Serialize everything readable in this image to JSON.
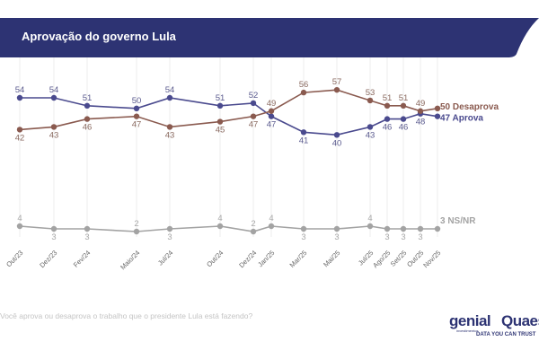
{
  "header": {
    "title": "Aprovação do governo Lula",
    "color": "#2d3373"
  },
  "footer": {
    "question": "Você aprova ou desaprova o trabalho que o presidente Lula está fazendo?",
    "logo_genial": "genial",
    "logo_genial_sub": "investimentos",
    "logo_quaest": "Quaest",
    "logo_quaest_sub": "DATA YOU CAN TRUST"
  },
  "chart_data": {
    "type": "line",
    "title": "Aprovação do governo Lula",
    "categories": [
      "Out/23",
      "Dez/23",
      "Fev/24",
      "Maio/24",
      "Jul/24",
      "Out/24",
      "Dez/24",
      "Jan/25",
      "Mar/25",
      "Mai/25",
      "Jul/25",
      "Ago/25",
      "Set/25",
      "Out/25",
      "Nov/25"
    ],
    "series": [
      {
        "name": "Aprova",
        "end_label": "47 Aprova",
        "color": "#4a4a8e",
        "values": [
          54,
          54,
          51,
          50,
          54,
          51,
          52,
          47,
          41,
          40,
          43,
          46,
          46,
          48,
          47
        ]
      },
      {
        "name": "Desaprova",
        "end_label": "50 Desaprova",
        "color": "#8a5a4f",
        "values": [
          42,
          43,
          46,
          47,
          43,
          45,
          47,
          49,
          56,
          57,
          53,
          51,
          51,
          49,
          50
        ]
      },
      {
        "name": "NS/NR",
        "end_label": "3 NS/NR",
        "color": "#a3a3a3",
        "values": [
          4,
          3,
          3,
          2,
          3,
          4,
          2,
          4,
          3,
          3,
          4,
          3,
          3,
          3,
          3
        ]
      }
    ],
    "grid": "vertical",
    "legend": "end-of-line labels"
  }
}
